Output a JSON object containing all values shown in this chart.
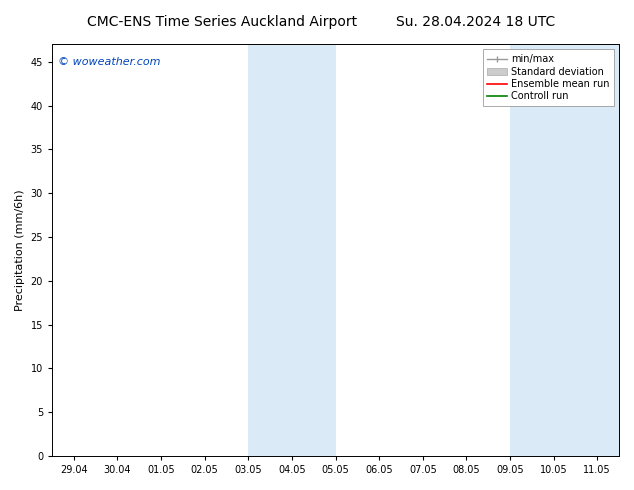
{
  "title": "CMC-ENS Time Series Auckland Airport",
  "title_right": "Su. 28.04.2024 18 UTC",
  "ylabel": "Precipitation (mm/6h)",
  "watermark": "© woweather.com",
  "watermark_color": "#0044bb",
  "x_tick_labels": [
    "29.04",
    "30.04",
    "01.05",
    "02.05",
    "03.05",
    "04.05",
    "05.05",
    "06.05",
    "07.05",
    "08.05",
    "09.05",
    "10.05",
    "11.05"
  ],
  "x_tick_positions": [
    0,
    1,
    2,
    3,
    4,
    5,
    6,
    7,
    8,
    9,
    10,
    11,
    12
  ],
  "ylim": [
    0,
    47
  ],
  "yticks": [
    0,
    5,
    10,
    15,
    20,
    25,
    30,
    35,
    40,
    45
  ],
  "shaded_regions": [
    {
      "xmin": 4.0,
      "xmax": 6.0,
      "color": "#daeaf6"
    },
    {
      "xmin": 10.0,
      "xmax": 12.5,
      "color": "#daeaf6"
    }
  ],
  "bg_color": "#ffffff",
  "plot_bg_color": "#ffffff",
  "tick_fontsize": 7,
  "title_fontsize": 10,
  "label_fontsize": 8,
  "legend_fontsize": 7
}
